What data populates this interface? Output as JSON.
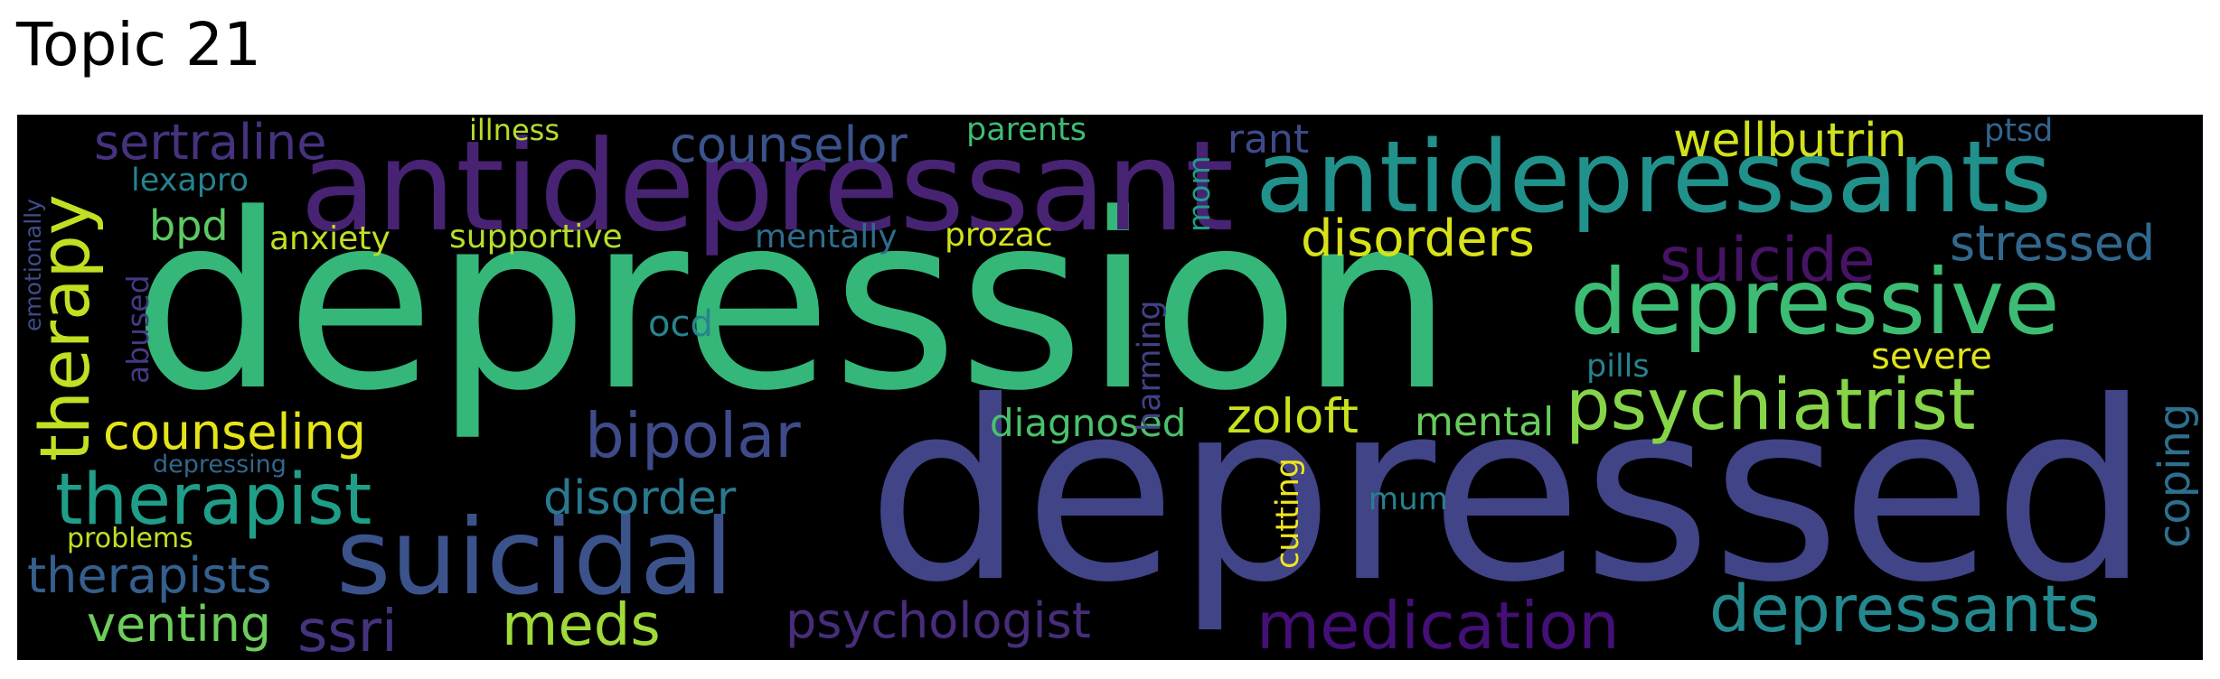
{
  "title": "Topic 21",
  "cloud": {
    "background": "#000000",
    "words": [
      {
        "text": "depression",
        "color": "#35b779"
      },
      {
        "text": "depressed",
        "color": "#414487"
      },
      {
        "text": "antidepressant",
        "color": "#482374"
      },
      {
        "text": "antidepressants",
        "color": "#21918c"
      },
      {
        "text": "depressive",
        "color": "#3dbc74"
      },
      {
        "text": "suicidal",
        "color": "#3b528b"
      },
      {
        "text": "psychiatrist",
        "color": "#86d549"
      },
      {
        "text": "therapy",
        "color": "#c2df23"
      },
      {
        "text": "therapist",
        "color": "#1f9e89"
      },
      {
        "text": "depressants",
        "color": "#23898e"
      },
      {
        "text": "medication",
        "color": "#440f76"
      },
      {
        "text": "bipolar",
        "color": "#3e4a89"
      },
      {
        "text": "suicide",
        "color": "#471365"
      },
      {
        "text": "meds",
        "color": "#a0da39"
      },
      {
        "text": "ssri",
        "color": "#46337e"
      },
      {
        "text": "sertraline",
        "color": "#46327e"
      },
      {
        "text": "counselor",
        "color": "#3b528b"
      },
      {
        "text": "wellbutrin",
        "color": "#d0e11c"
      },
      {
        "text": "disorders",
        "color": "#d8e219"
      },
      {
        "text": "stressed",
        "color": "#31688e"
      },
      {
        "text": "counseling",
        "color": "#e5e419"
      },
      {
        "text": "psychologist",
        "color": "#472d7b"
      },
      {
        "text": "venting",
        "color": "#6ccd5a"
      },
      {
        "text": "therapists",
        "color": "#355f8d"
      },
      {
        "text": "zoloft",
        "color": "#cae11f"
      },
      {
        "text": "disorder",
        "color": "#2a788e"
      },
      {
        "text": "mental",
        "color": "#67cc5c"
      },
      {
        "text": "diagnosed",
        "color": "#4ac16d"
      },
      {
        "text": "coping",
        "color": "#2e6f8e"
      },
      {
        "text": "rant",
        "color": "#3e4a89"
      },
      {
        "text": "severe",
        "color": "#dfe318"
      },
      {
        "text": "ocd",
        "color": "#25858e"
      },
      {
        "text": "bpd",
        "color": "#5ec962"
      },
      {
        "text": "anxiety",
        "color": "#c0df25"
      },
      {
        "text": "supportive",
        "color": "#b5de2b"
      },
      {
        "text": "prozac",
        "color": "#d2e21b"
      },
      {
        "text": "mentally",
        "color": "#2e6e8e"
      },
      {
        "text": "lexapro",
        "color": "#26828e"
      },
      {
        "text": "parents",
        "color": "#3fbc73"
      },
      {
        "text": "illness",
        "color": "#b5de2b"
      },
      {
        "text": "ptsd",
        "color": "#32648e"
      },
      {
        "text": "pills",
        "color": "#26828e"
      },
      {
        "text": "mum",
        "color": "#27808e"
      },
      {
        "text": "problems",
        "color": "#c2df23"
      },
      {
        "text": "depressing",
        "color": "#30678d"
      },
      {
        "text": "cutting",
        "color": "#f1e51d"
      },
      {
        "text": "harming",
        "color": "#424186"
      },
      {
        "text": "mom",
        "color": "#1f9e89"
      },
      {
        "text": "abused",
        "color": "#443a83"
      },
      {
        "text": "emotionally",
        "color": "#3e4c8a"
      }
    ]
  }
}
